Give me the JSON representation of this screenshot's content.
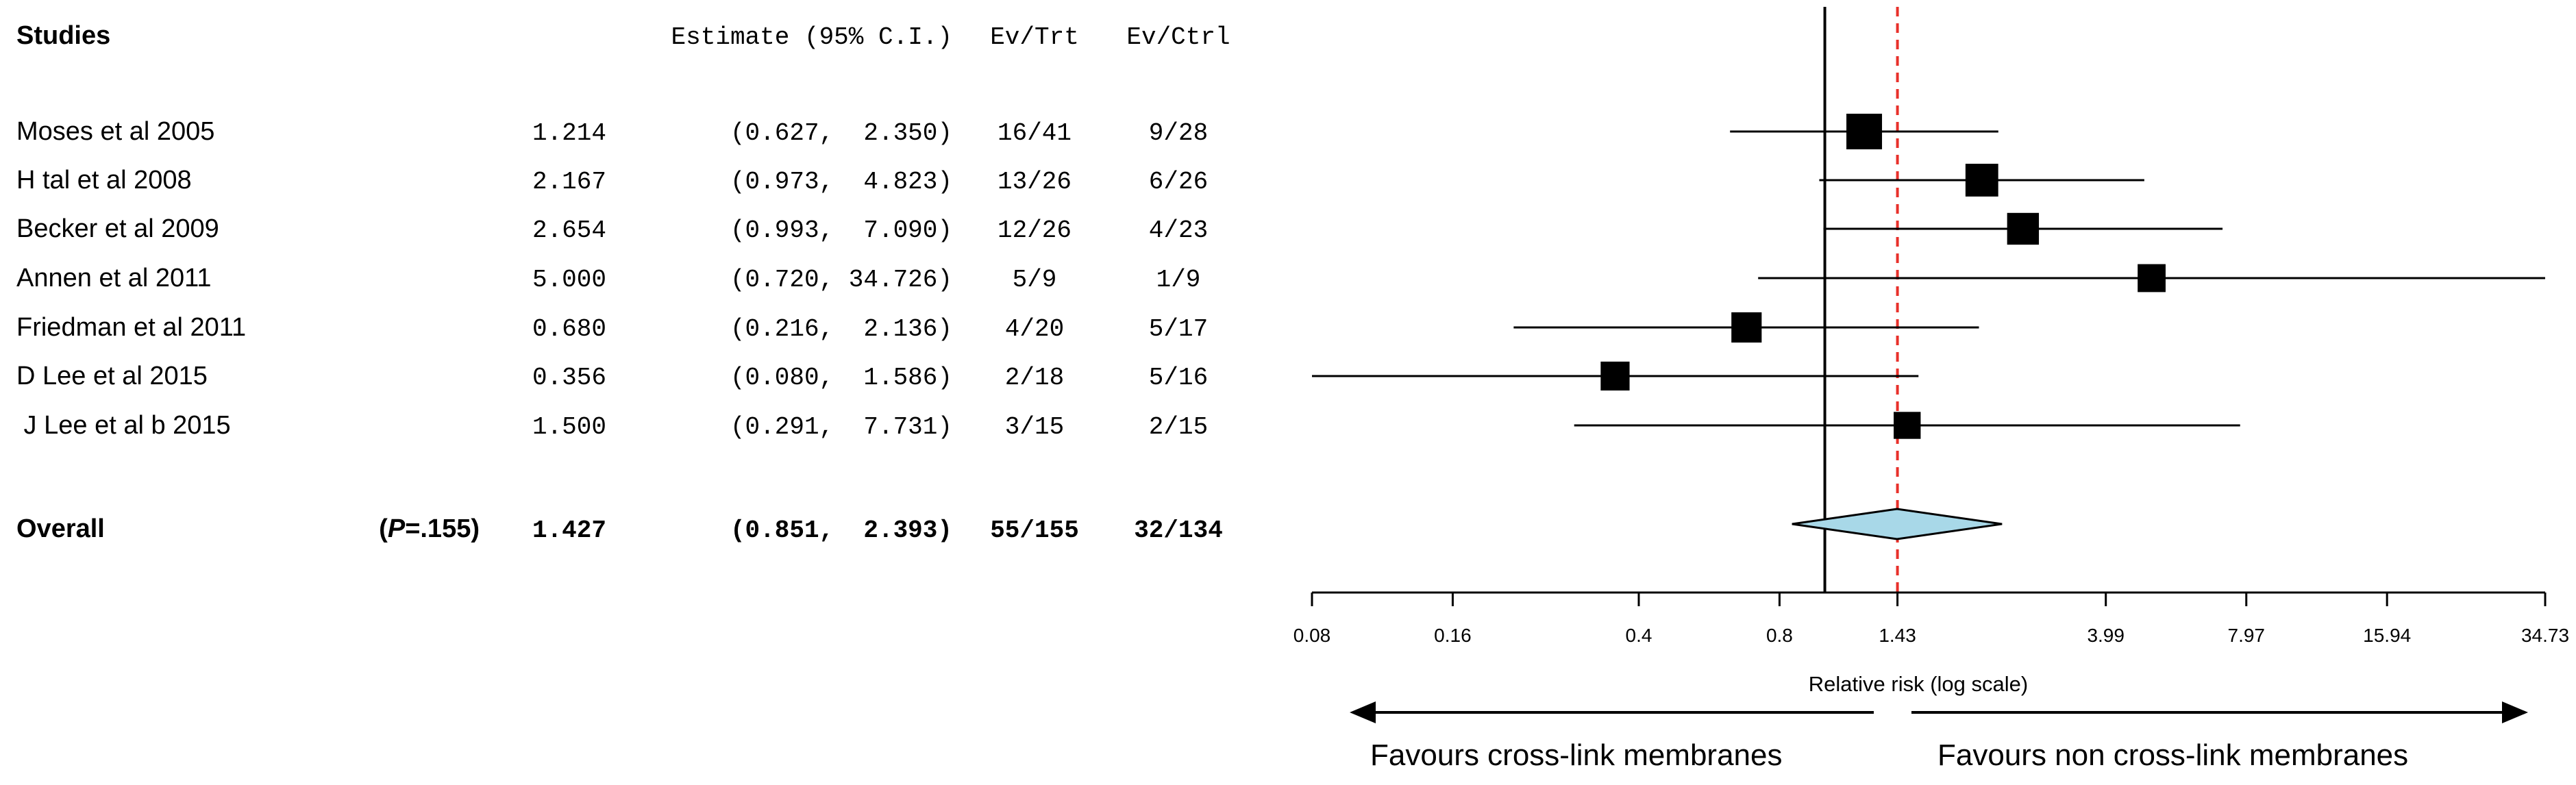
{
  "chart_data": {
    "type": "forest",
    "columns": {
      "studies": "Studies",
      "estimate": "Estimate (95% C.I.)",
      "ev_trt": "Ev/Trt",
      "ev_ctrl": "Ev/Ctrl"
    },
    "studies": [
      {
        "name": "Moses et al 2005",
        "estimate_text": "1.214",
        "ci_text": "(0.627,  2.350)",
        "ev_trt": "16/41",
        "ev_ctrl": "9/28",
        "rr": 1.214,
        "lower": 0.627,
        "upper": 2.35,
        "weight": 1.0
      },
      {
        "name": "H tal et al 2008",
        "estimate_text": "2.167",
        "ci_text": "(0.973,  4.823)",
        "ev_trt": "13/26",
        "ev_ctrl": "6/26",
        "rr": 2.167,
        "lower": 0.973,
        "upper": 4.823,
        "weight": 0.85
      },
      {
        "name": "Becker et al 2009",
        "estimate_text": "2.654",
        "ci_text": "(0.993,  7.090)",
        "ev_trt": "12/26",
        "ev_ctrl": "4/23",
        "rr": 2.654,
        "lower": 0.993,
        "upper": 7.09,
        "weight": 0.8
      },
      {
        "name": "Annen et al 2011",
        "estimate_text": "5.000",
        "ci_text": "(0.720, 34.726)",
        "ev_trt": "5/9",
        "ev_ctrl": "1/9",
        "rr": 5.0,
        "lower": 0.72,
        "upper": 34.726,
        "weight": 0.6
      },
      {
        "name": "Friedman et al 2011",
        "estimate_text": "0.680",
        "ci_text": "(0.216,  2.136)",
        "ev_trt": "4/20",
        "ev_ctrl": "5/17",
        "rr": 0.68,
        "lower": 0.216,
        "upper": 2.136,
        "weight": 0.72
      },
      {
        "name": "D Lee et al 2015",
        "estimate_text": "0.356",
        "ci_text": "(0.080,  1.586)",
        "ev_trt": "2/18",
        "ev_ctrl": "5/16",
        "rr": 0.356,
        "lower": 0.08,
        "upper": 1.586,
        "weight": 0.65
      },
      {
        "name": " J Lee et al b 2015",
        "estimate_text": "1.500",
        "ci_text": "(0.291,  7.731)",
        "ev_trt": "3/15",
        "ev_ctrl": "2/15",
        "rr": 1.5,
        "lower": 0.291,
        "upper": 7.731,
        "weight": 0.55
      }
    ],
    "overall": {
      "label": "Overall",
      "p_prefix": "(",
      "p_italic": "P",
      "p_suffix": "=.155)",
      "estimate_text": "1.427",
      "ci_text": "(0.851,  2.393)",
      "ev_trt": "55/155",
      "ev_ctrl": "32/134",
      "rr": 1.427,
      "lower": 0.851,
      "upper": 2.393
    },
    "null_value": 1,
    "reference_value": 1.43,
    "x_axis": {
      "scale": "log",
      "label": "Relative risk (log scale)",
      "range": [
        0.08,
        34.73
      ],
      "ticks": [
        0.08,
        0.16,
        0.4,
        0.8,
        1.43,
        3.99,
        7.97,
        15.94,
        34.73
      ],
      "tick_labels": [
        "0.08",
        "0.16",
        "0.4",
        "0.8",
        "1.43",
        "3.99",
        "7.97",
        "15.94",
        "34.73"
      ]
    },
    "favours_left": "Favours cross-link membranes",
    "favours_right": "Favours non cross-link membranes",
    "colors": {
      "reference_line": "#e8302a",
      "diamond_fill": "#a8d8e8",
      "marker": "#000000"
    }
  }
}
